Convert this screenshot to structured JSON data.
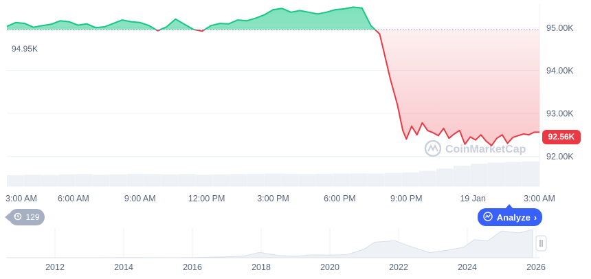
{
  "chart_data": [
    {
      "type": "area",
      "reference_value": 94.95,
      "reference_label": "94.95K",
      "last_value": 92.56,
      "last_label": "92.56K",
      "ylim": [
        91.3,
        95.55
      ],
      "y_ticks": [
        {
          "value": 95.0,
          "label": "95.00K"
        },
        {
          "value": 94.0,
          "label": "94.00K"
        },
        {
          "value": 93.0,
          "label": "93.00K"
        },
        {
          "value": 92.0,
          "label": "92.00K"
        }
      ],
      "x_ticks": [
        "3:00 AM",
        "6:00 AM",
        "9:00 AM",
        "12:00 PM",
        "3:00 PM",
        "6:00 PM",
        "9:00 PM",
        "19 Jan",
        "3:00 AM"
      ],
      "grid": true,
      "series": [
        {
          "color_up": "#16c784",
          "color_down": "#ea3943",
          "x": [
            0,
            0.5,
            1,
            1.5,
            2,
            2.5,
            3,
            3.5,
            4,
            4.5,
            5,
            5.5,
            6,
            6.5,
            7,
            7.5,
            8,
            8.5,
            9,
            9.5,
            10,
            10.5,
            11,
            11.5,
            12,
            12.5,
            13,
            13.5,
            14,
            14.5,
            15,
            15.5,
            16,
            16.5,
            17,
            17.5,
            18,
            18.5,
            19,
            19.5,
            20,
            20.5,
            21,
            21.2,
            21.6,
            22,
            22.3,
            22.5,
            22.8,
            23.1,
            23.4,
            23.7,
            24,
            24.3,
            24.6,
            24.9,
            25.2,
            25.5,
            25.8,
            26.1,
            26.4,
            26.7,
            27,
            27.3,
            27.6,
            27.9,
            28.2,
            28.5,
            28.8,
            29.1,
            29.4,
            29.7,
            30
          ],
          "values": [
            95.03,
            95.12,
            95.1,
            95.01,
            95.05,
            95.08,
            95.16,
            95.14,
            95.06,
            95.09,
            95.0,
            95.02,
            95.1,
            95.18,
            95.14,
            95.12,
            95.05,
            94.93,
            95.02,
            95.2,
            95.08,
            94.96,
            94.92,
            95.05,
            95.1,
            95.09,
            95.18,
            95.16,
            95.22,
            95.3,
            95.42,
            95.45,
            95.36,
            95.4,
            95.36,
            95.32,
            95.36,
            95.42,
            95.44,
            95.48,
            95.46,
            95.05,
            94.85,
            94.5,
            93.8,
            93.2,
            92.6,
            92.4,
            92.7,
            92.5,
            92.78,
            92.6,
            92.55,
            92.48,
            92.65,
            92.42,
            92.52,
            92.6,
            92.28,
            92.45,
            92.38,
            92.5,
            92.35,
            92.25,
            92.42,
            92.5,
            92.3,
            92.44,
            92.48,
            92.52,
            92.5,
            92.56,
            92.56
          ]
        }
      ],
      "volume": [
        0.4,
        0.42,
        0.41,
        0.43,
        0.44,
        0.42,
        0.43,
        0.45,
        0.44,
        0.43,
        0.44,
        0.42,
        0.43,
        0.44,
        0.45,
        0.46,
        0.45,
        0.44,
        0.45,
        0.46,
        0.47,
        0.46,
        0.48,
        0.5,
        0.56,
        0.64,
        0.74,
        0.82,
        0.86,
        0.88,
        0.9
      ]
    },
    {
      "type": "area",
      "x_ticks": [
        "2012",
        "2014",
        "2016",
        "2018",
        "2020",
        "2022",
        "2024",
        "2026"
      ],
      "x": [
        2010.6,
        2011,
        2012,
        2013,
        2014,
        2015,
        2016,
        2017,
        2017.5,
        2017.96,
        2018.5,
        2019,
        2019.5,
        2020,
        2020.5,
        2021,
        2021.3,
        2021.9,
        2022.3,
        2022.9,
        2023.4,
        2023.9,
        2024.2,
        2024.6,
        2025,
        2025.5,
        2025.9
      ],
      "values": [
        0.0,
        0.0,
        0.0,
        0.001,
        0.005,
        0.003,
        0.005,
        0.03,
        0.06,
        0.19,
        0.08,
        0.05,
        0.1,
        0.09,
        0.11,
        0.3,
        0.55,
        0.6,
        0.42,
        0.18,
        0.26,
        0.37,
        0.64,
        0.6,
        0.95,
        0.88,
        1.0
      ]
    }
  ],
  "history_badge": {
    "icon": "history-icon",
    "count": "129"
  },
  "analyze_button": {
    "icon": "analyze-icon",
    "label": "Analyze"
  },
  "watermark": {
    "icon": "coinmarketcap-logo",
    "text": "CoinMarketCap"
  },
  "colors": {
    "up": "#16c784",
    "down": "#ea3943",
    "accent": "#3861fb",
    "badge_gray": "#a6b0c3",
    "axis_text": "#58667e"
  }
}
